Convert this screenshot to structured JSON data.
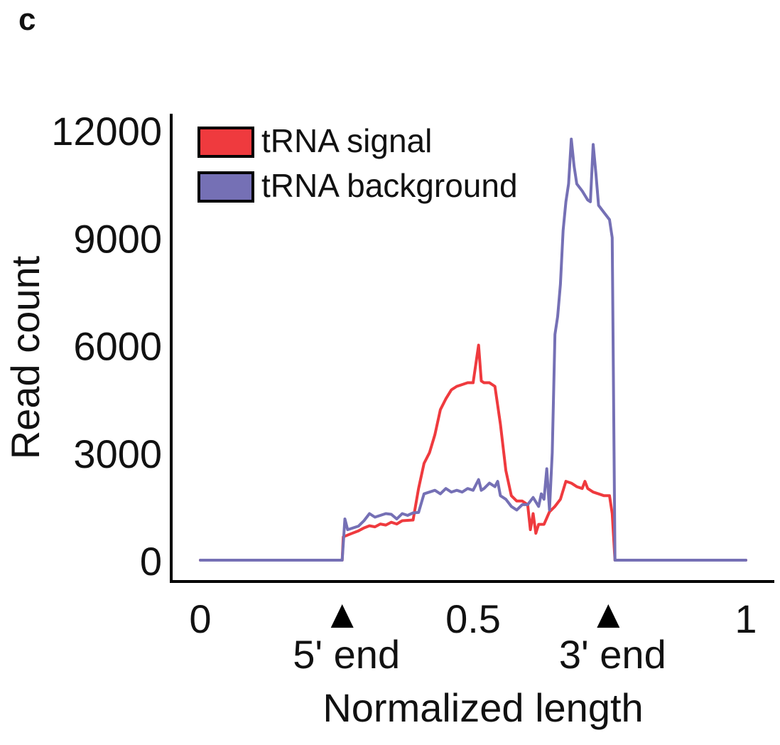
{
  "panel_label": "c",
  "colors": {
    "signal": "#ef3a3e",
    "background": "#7570b5",
    "axis": "#000000",
    "text": "#111111"
  },
  "chart_data": {
    "type": "line",
    "title": "",
    "xlabel": "Normalized length",
    "ylabel": "Read count",
    "xlim": [
      0,
      1
    ],
    "ylim": [
      0,
      12000
    ],
    "grid": false,
    "legend_position": "top-left",
    "x_ticks": [
      {
        "value": 0,
        "label": "0"
      },
      {
        "value": 0.5,
        "label": "0.5"
      },
      {
        "value": 1,
        "label": "1"
      }
    ],
    "y_ticks": [
      {
        "value": 0,
        "label": "0"
      },
      {
        "value": 3000,
        "label": "3000"
      },
      {
        "value": 6000,
        "label": "6000"
      },
      {
        "value": 9000,
        "label": "9000"
      },
      {
        "value": 12000,
        "label": "12000"
      }
    ],
    "annotations": [
      {
        "x": 0.26,
        "label": "5' end",
        "marker": "triangle-up"
      },
      {
        "x": 0.74,
        "label": "3' end",
        "marker": "triangle-up"
      }
    ],
    "series": [
      {
        "name": "tRNA signal",
        "color": "#ef3a3e",
        "points": [
          [
            0,
            0
          ],
          [
            0.26,
            0
          ],
          [
            0.262,
            650
          ],
          [
            0.27,
            700
          ],
          [
            0.28,
            760
          ],
          [
            0.29,
            820
          ],
          [
            0.3,
            900
          ],
          [
            0.31,
            960
          ],
          [
            0.32,
            930
          ],
          [
            0.33,
            1010
          ],
          [
            0.34,
            980
          ],
          [
            0.35,
            1060
          ],
          [
            0.36,
            1010
          ],
          [
            0.37,
            1100
          ],
          [
            0.38,
            1110
          ],
          [
            0.39,
            1120
          ],
          [
            0.4,
            2000
          ],
          [
            0.41,
            2700
          ],
          [
            0.42,
            3000
          ],
          [
            0.43,
            3500
          ],
          [
            0.44,
            4200
          ],
          [
            0.45,
            4500
          ],
          [
            0.46,
            4750
          ],
          [
            0.47,
            4850
          ],
          [
            0.48,
            4900
          ],
          [
            0.49,
            4950
          ],
          [
            0.5,
            4950
          ],
          [
            0.51,
            6000
          ],
          [
            0.515,
            5000
          ],
          [
            0.52,
            4950
          ],
          [
            0.53,
            4950
          ],
          [
            0.54,
            4850
          ],
          [
            0.55,
            3800
          ],
          [
            0.56,
            2500
          ],
          [
            0.57,
            1800
          ],
          [
            0.58,
            1650
          ],
          [
            0.59,
            1650
          ],
          [
            0.6,
            1550
          ],
          [
            0.605,
            850
          ],
          [
            0.61,
            1300
          ],
          [
            0.615,
            750
          ],
          [
            0.62,
            1000
          ],
          [
            0.63,
            1000
          ],
          [
            0.64,
            1350
          ],
          [
            0.65,
            1500
          ],
          [
            0.66,
            1700
          ],
          [
            0.67,
            2200
          ],
          [
            0.68,
            2150
          ],
          [
            0.69,
            2050
          ],
          [
            0.7,
            2000
          ],
          [
            0.705,
            2200
          ],
          [
            0.71,
            2000
          ],
          [
            0.72,
            1900
          ],
          [
            0.73,
            1850
          ],
          [
            0.74,
            1800
          ],
          [
            0.75,
            1800
          ],
          [
            0.755,
            1300
          ],
          [
            0.76,
            0
          ],
          [
            1,
            0
          ]
        ]
      },
      {
        "name": "tRNA background",
        "color": "#7570b5",
        "points": [
          [
            0,
            0
          ],
          [
            0.26,
            0
          ],
          [
            0.265,
            1150
          ],
          [
            0.27,
            850
          ],
          [
            0.28,
            900
          ],
          [
            0.29,
            950
          ],
          [
            0.3,
            1100
          ],
          [
            0.31,
            1300
          ],
          [
            0.32,
            1200
          ],
          [
            0.33,
            1250
          ],
          [
            0.34,
            1300
          ],
          [
            0.35,
            1280
          ],
          [
            0.36,
            1150
          ],
          [
            0.37,
            1300
          ],
          [
            0.38,
            1250
          ],
          [
            0.39,
            1320
          ],
          [
            0.4,
            1330
          ],
          [
            0.41,
            1850
          ],
          [
            0.42,
            1900
          ],
          [
            0.43,
            1950
          ],
          [
            0.44,
            1850
          ],
          [
            0.45,
            2000
          ],
          [
            0.46,
            1900
          ],
          [
            0.47,
            1950
          ],
          [
            0.48,
            1900
          ],
          [
            0.49,
            2000
          ],
          [
            0.5,
            1950
          ],
          [
            0.51,
            2250
          ],
          [
            0.515,
            1950
          ],
          [
            0.52,
            2000
          ],
          [
            0.53,
            2150
          ],
          [
            0.54,
            2050
          ],
          [
            0.545,
            2200
          ],
          [
            0.55,
            1800
          ],
          [
            0.56,
            1700
          ],
          [
            0.57,
            1500
          ],
          [
            0.58,
            1400
          ],
          [
            0.59,
            1550
          ],
          [
            0.6,
            1550
          ],
          [
            0.61,
            1750
          ],
          [
            0.62,
            1500
          ],
          [
            0.625,
            1850
          ],
          [
            0.63,
            1700
          ],
          [
            0.635,
            2550
          ],
          [
            0.64,
            1400
          ],
          [
            0.645,
            3000
          ],
          [
            0.65,
            6300
          ],
          [
            0.655,
            6800
          ],
          [
            0.66,
            7700
          ],
          [
            0.665,
            9200
          ],
          [
            0.67,
            10000
          ],
          [
            0.675,
            10500
          ],
          [
            0.68,
            11750
          ],
          [
            0.685,
            11000
          ],
          [
            0.69,
            10500
          ],
          [
            0.7,
            10300
          ],
          [
            0.71,
            10050
          ],
          [
            0.715,
            10000
          ],
          [
            0.72,
            11600
          ],
          [
            0.725,
            10800
          ],
          [
            0.73,
            9900
          ],
          [
            0.74,
            9700
          ],
          [
            0.75,
            9500
          ],
          [
            0.755,
            9000
          ],
          [
            0.76,
            0
          ],
          [
            1,
            0
          ]
        ]
      }
    ]
  }
}
